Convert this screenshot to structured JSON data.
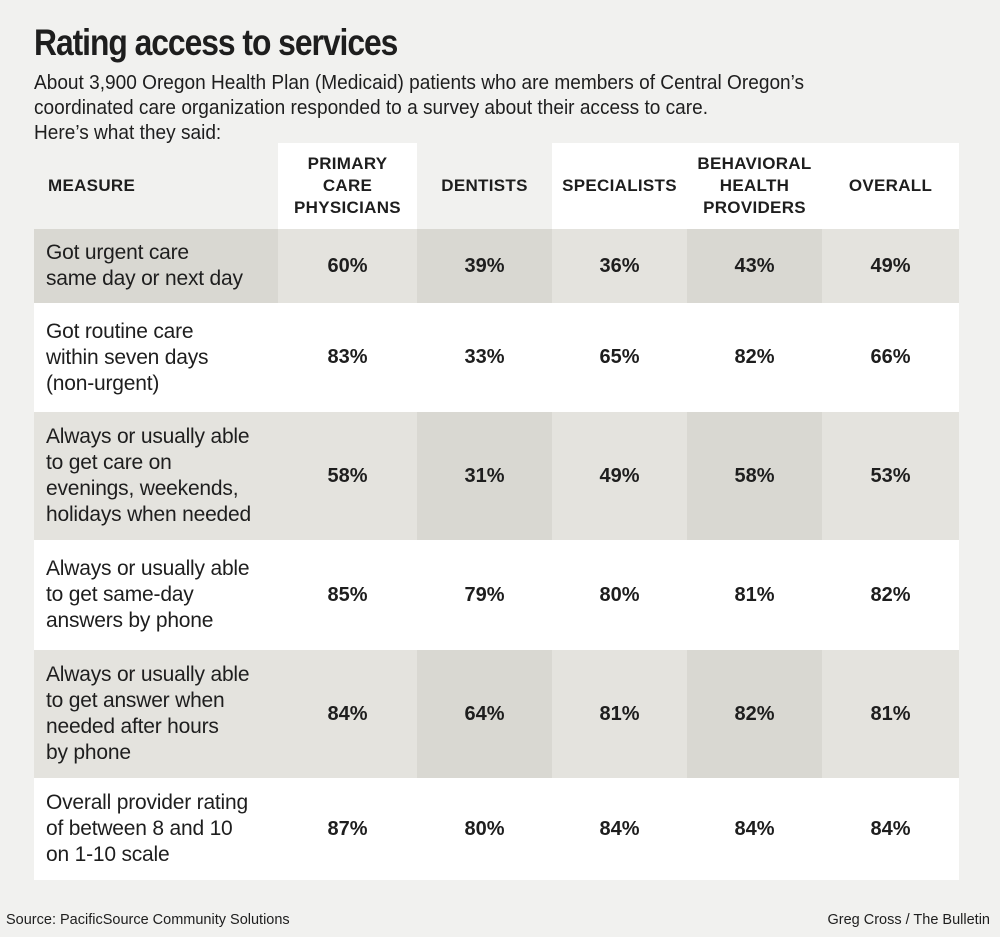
{
  "title": "Rating access to services",
  "subtitle_lines": [
    "About 3,900 Oregon Health Plan (Medicaid) patients who are members of Central Oregon’s",
    "coordinated care organization responded to a survey about their access to care.",
    "Here’s what they said:"
  ],
  "chart_data": {
    "type": "table",
    "columns": [
      {
        "label": "MEASURE",
        "lines": [
          "MEASURE"
        ]
      },
      {
        "label": "PRIMARY CARE PHYSICIANS",
        "lines": [
          "PRIMARY",
          "CARE",
          "PHYSICIANS"
        ]
      },
      {
        "label": "DENTISTS",
        "lines": [
          "DENTISTS"
        ]
      },
      {
        "label": "SPECIALISTS",
        "lines": [
          "SPECIALISTS"
        ]
      },
      {
        "label": "BEHAVIORAL HEALTH PROVIDERS",
        "lines": [
          "BEHAVIORAL",
          "HEALTH",
          "PROVIDERS"
        ]
      },
      {
        "label": "OVERALL",
        "lines": [
          "OVERALL"
        ]
      }
    ],
    "rows": [
      {
        "measure_lines": [
          "Got urgent care",
          "same day or next day"
        ],
        "values": [
          "60%",
          "39%",
          "36%",
          "43%",
          "49%"
        ]
      },
      {
        "measure_lines": [
          "Got routine care",
          "within seven days",
          "(non-urgent)"
        ],
        "values": [
          "83%",
          "33%",
          "65%",
          "82%",
          "66%"
        ]
      },
      {
        "measure_lines": [
          "Always or usually able",
          "to get care on",
          "evenings, weekends,",
          "holidays when needed"
        ],
        "values": [
          "58%",
          "31%",
          "49%",
          "58%",
          "53%"
        ]
      },
      {
        "measure_lines": [
          "Always or usually able",
          "to get same-day",
          "answers by phone"
        ],
        "values": [
          "85%",
          "79%",
          "80%",
          "81%",
          "82%"
        ]
      },
      {
        "measure_lines": [
          "Always or usually able",
          "to get answer when",
          "needed after hours",
          "by phone"
        ],
        "values": [
          "84%",
          "64%",
          "81%",
          "82%",
          "81%"
        ]
      },
      {
        "measure_lines": [
          "Overall provider rating",
          "of between 8 and 10",
          "on 1-10 scale"
        ],
        "values": [
          "87%",
          "80%",
          "84%",
          "84%",
          "84%"
        ]
      }
    ]
  },
  "source": "Source: PacificSource Community Solutions",
  "credit": "Greg Cross / The Bulletin",
  "colors": {
    "background": "#f1f1ef",
    "cell_white": "#ffffff",
    "cell_gray": "#e4e3de",
    "cell_dark": "#d9d8d2"
  }
}
